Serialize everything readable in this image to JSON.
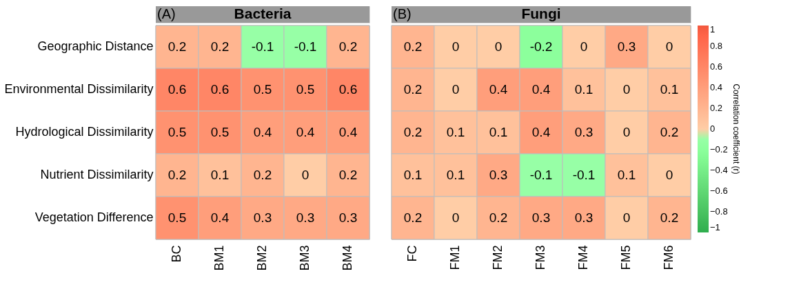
{
  "chart_data": [
    {
      "type": "heatmap",
      "title": "Bacteria",
      "annotations": [
        "(A)"
      ],
      "data_labels": true,
      "categories": [
        "BC",
        "BM1",
        "BM2",
        "BM3",
        "BM4"
      ],
      "y_categories": [
        "Geographic Distance",
        "Environmental Dissimilarity",
        "Hydrological Dissimilarity",
        "Nutrient Dissimilarity",
        "Vegetation Difference"
      ],
      "cells": [
        [
          0.2,
          0.2,
          -0.1,
          -0.1,
          0.2
        ],
        [
          0.6,
          0.6,
          0.5,
          0.5,
          0.6
        ],
        [
          0.5,
          0.5,
          0.4,
          0.4,
          0.4
        ],
        [
          0.2,
          0.1,
          0.2,
          0,
          0.2
        ],
        [
          0.5,
          0.4,
          0.3,
          0.3,
          0.3
        ]
      ]
    },
    {
      "type": "heatmap",
      "title": "Fungi",
      "annotations": [
        "(B)"
      ],
      "data_labels": true,
      "tick_labels": "x",
      "categories": [
        "FC",
        "FM1",
        "FM2",
        "FM3",
        "FM4",
        "FM5",
        "FM6"
      ],
      "y_categories": [
        null,
        null,
        null,
        null,
        null
      ],
      "cells": [
        [
          0.2,
          0,
          0,
          -0.2,
          0,
          0.3,
          0
        ],
        [
          0.2,
          0,
          0.4,
          0.4,
          0.1,
          0,
          0.1
        ],
        [
          0.2,
          0.1,
          0.1,
          0.4,
          0.3,
          0,
          0.2
        ],
        [
          0.1,
          0.1,
          0.3,
          -0.1,
          -0.1,
          0.1,
          0
        ],
        [
          0.2,
          0,
          0.2,
          0.3,
          0.3,
          0,
          0.2
        ]
      ],
      "clabel": "Correlation coefficient (r)",
      "clim": [
        -1,
        1
      ],
      "cticks": [
        -1,
        -0.8,
        -0.6,
        -0.4,
        -0.2,
        0,
        0.2,
        0.4,
        0.6,
        0.8,
        1
      ]
    }
  ]
}
